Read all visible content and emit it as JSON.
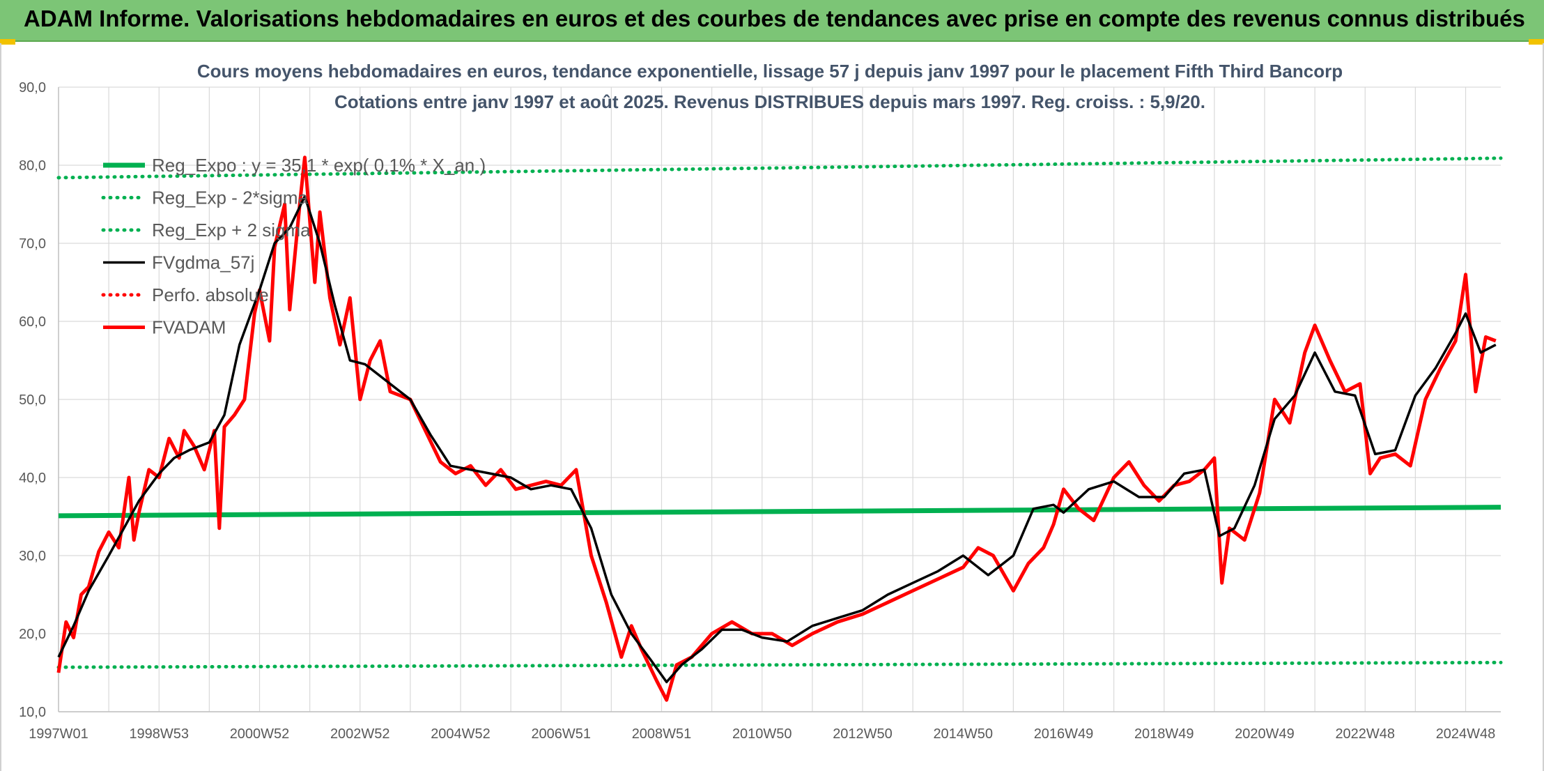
{
  "banner": {
    "title": "ADAM Informe. Valorisations hebdomadaires en euros et des courbes de tendances avec prise en compte des revenus connus distribués"
  },
  "colors": {
    "banner": "#7cc576",
    "reg_expo": "#00b050",
    "fv_gdma": "#000000",
    "fvadam": "#ff0000",
    "grid": "#d9d9d9",
    "axis_text": "#595959",
    "title_text": "#44546a"
  },
  "chart_data": {
    "type": "line",
    "title": "Cours moyens hebdomadaires en euros, tendance exponentielle, lissage 57 j depuis janv 1997 pour le placement Fifth Third Bancorp",
    "subtitle": "Cotations entre janv 1997 et août 2025. Revenus DISTRIBUES depuis mars 1997. Reg. croiss. : 5,9/20.",
    "xlabel": "",
    "ylabel": "",
    "ylim": [
      10,
      90
    ],
    "xlim": [
      1997.0,
      2025.7
    ],
    "yticks": [
      "10,0",
      "20,0",
      "30,0",
      "40,0",
      "50,0",
      "60,0",
      "70,0",
      "80,0",
      "90,0"
    ],
    "xticks": [
      {
        "label": "1997W01",
        "x": 1997.0
      },
      {
        "label": "1998W53",
        "x": 1999.0
      },
      {
        "label": "2000W52",
        "x": 2001.0
      },
      {
        "label": "2002W52",
        "x": 2003.0
      },
      {
        "label": "2004W52",
        "x": 2005.0
      },
      {
        "label": "2006W51",
        "x": 2007.0
      },
      {
        "label": "2008W51",
        "x": 2009.0
      },
      {
        "label": "2010W50",
        "x": 2011.0
      },
      {
        "label": "2012W50",
        "x": 2013.0
      },
      {
        "label": "2014W50",
        "x": 2015.0
      },
      {
        "label": "2016W49",
        "x": 2017.0
      },
      {
        "label": "2018W49",
        "x": 2019.0
      },
      {
        "label": "2020W49",
        "x": 2021.0
      },
      {
        "label": "2022W48",
        "x": 2023.0
      },
      {
        "label": "2024W48",
        "x": 2025.0
      }
    ],
    "grid": true,
    "legend_position": "top-left",
    "series": [
      {
        "name": "Reg_Expo : y = 35,1 * exp( 0,1% * X_an )",
        "style": "solid-thick",
        "color": "#00b050",
        "x": [
          1997.0,
          2025.7
        ],
        "y": [
          35.1,
          36.2
        ]
      },
      {
        "name": "Reg_Exp - 2*sigma",
        "style": "dotted",
        "color": "#00b050",
        "x": [
          1997.0,
          2025.7
        ],
        "y": [
          15.7,
          16.3
        ]
      },
      {
        "name": "Reg_Exp + 2 sigma",
        "style": "dotted",
        "color": "#00b050",
        "x": [
          1997.0,
          2025.7
        ],
        "y": [
          78.4,
          80.9
        ]
      },
      {
        "name": "FVgdma_57j",
        "style": "solid",
        "color": "#000000",
        "x": [
          1997.0,
          1997.3,
          1997.6,
          1998.0,
          1998.3,
          1998.6,
          1999.0,
          1999.3,
          1999.6,
          2000.0,
          2000.3,
          2000.6,
          2001.0,
          2001.3,
          2001.6,
          2001.9,
          2002.2,
          2002.5,
          2002.8,
          2003.1,
          2003.4,
          2003.7,
          2004.0,
          2004.4,
          2004.8,
          2005.2,
          2005.6,
          2006.0,
          2006.4,
          2006.8,
          2007.2,
          2007.6,
          2008.0,
          2008.4,
          2008.8,
          2009.1,
          2009.4,
          2009.8,
          2010.2,
          2010.6,
          2011.0,
          2011.5,
          2012.0,
          2012.5,
          2013.0,
          2013.5,
          2014.0,
          2014.5,
          2015.0,
          2015.5,
          2016.0,
          2016.4,
          2016.8,
          2017.0,
          2017.5,
          2018.0,
          2018.5,
          2019.0,
          2019.4,
          2019.8,
          2020.1,
          2020.4,
          2020.8,
          2021.2,
          2021.6,
          2022.0,
          2022.4,
          2022.8,
          2023.2,
          2023.6,
          2024.0,
          2024.4,
          2024.8,
          2025.0,
          2025.3,
          2025.6
        ],
        "y": [
          17.0,
          21.0,
          25.5,
          30.0,
          33.5,
          37.0,
          40.5,
          42.5,
          43.5,
          44.5,
          48.0,
          57.0,
          64.0,
          70.0,
          72.0,
          76.0,
          70.0,
          62.0,
          55.0,
          54.5,
          53.0,
          51.5,
          50.0,
          45.5,
          41.5,
          41.0,
          40.5,
          40.0,
          38.5,
          39.0,
          38.5,
          33.5,
          25.0,
          20.0,
          16.5,
          13.8,
          16.0,
          18.0,
          20.5,
          20.5,
          19.5,
          19.0,
          21.0,
          22.0,
          23.0,
          25.0,
          26.5,
          28.0,
          30.0,
          27.5,
          30.0,
          36.0,
          36.5,
          35.5,
          38.5,
          39.5,
          37.5,
          37.5,
          40.5,
          41.0,
          32.5,
          33.5,
          39.0,
          47.5,
          50.5,
          56.0,
          51.0,
          50.5,
          43.0,
          43.5,
          50.5,
          54.0,
          58.5,
          61.0,
          56.0,
          57.0
        ]
      },
      {
        "name": "Perfo. absolue",
        "style": "dotted",
        "color": "#ff0000",
        "x": [],
        "y": []
      },
      {
        "name": "FVADAM",
        "style": "solid-thick",
        "color": "#ff0000",
        "x": [
          1997.0,
          1997.15,
          1997.3,
          1997.45,
          1997.6,
          1997.8,
          1998.0,
          1998.2,
          1998.4,
          1998.5,
          1998.6,
          1998.8,
          1999.0,
          1999.2,
          1999.4,
          1999.5,
          1999.7,
          1999.9,
          2000.1,
          2000.2,
          2000.3,
          2000.5,
          2000.7,
          2000.9,
          2001.0,
          2001.2,
          2001.3,
          2001.5,
          2001.6,
          2001.8,
          2001.9,
          2002.1,
          2002.2,
          2002.4,
          2002.6,
          2002.8,
          2003.0,
          2003.2,
          2003.4,
          2003.6,
          2003.8,
          2004.0,
          2004.3,
          2004.6,
          2004.9,
          2005.2,
          2005.5,
          2005.8,
          2006.1,
          2006.4,
          2006.7,
          2007.0,
          2007.3,
          2007.6,
          2007.9,
          2008.2,
          2008.4,
          2008.6,
          2008.9,
          2009.1,
          2009.3,
          2009.6,
          2010.0,
          2010.4,
          2010.8,
          2011.2,
          2011.6,
          2012.0,
          2012.5,
          2013.0,
          2013.5,
          2014.0,
          2014.5,
          2015.0,
          2015.3,
          2015.6,
          2016.0,
          2016.3,
          2016.6,
          2016.8,
          2017.0,
          2017.3,
          2017.6,
          2018.0,
          2018.3,
          2018.6,
          2018.9,
          2019.2,
          2019.5,
          2019.8,
          2020.0,
          2020.15,
          2020.3,
          2020.6,
          2020.9,
          2021.2,
          2021.5,
          2021.8,
          2022.0,
          2022.3,
          2022.6,
          2022.9,
          2023.1,
          2023.3,
          2023.6,
          2023.9,
          2024.2,
          2024.5,
          2024.8,
          2025.0,
          2025.2,
          2025.4,
          2025.6
        ],
        "y": [
          15.0,
          21.5,
          19.5,
          25.0,
          26.0,
          30.5,
          33.0,
          31.0,
          40.0,
          32.0,
          35.5,
          41.0,
          40.0,
          45.0,
          42.5,
          46.0,
          44.0,
          41.0,
          46.0,
          33.5,
          46.5,
          48.0,
          50.0,
          61.0,
          64.0,
          57.5,
          69.5,
          75.0,
          61.5,
          75.0,
          81.0,
          65.0,
          74.0,
          63.0,
          57.0,
          63.0,
          50.0,
          55.0,
          57.5,
          51.0,
          50.5,
          50.0,
          46.0,
          42.0,
          40.5,
          41.5,
          39.0,
          41.0,
          38.5,
          39.0,
          39.5,
          39.0,
          41.0,
          30.0,
          24.0,
          17.0,
          21.0,
          18.0,
          14.0,
          11.5,
          16.0,
          17.0,
          20.0,
          21.5,
          20.0,
          20.0,
          18.5,
          20.0,
          21.5,
          22.5,
          24.0,
          25.5,
          27.0,
          28.5,
          31.0,
          30.0,
          25.5,
          29.0,
          31.0,
          34.0,
          38.5,
          36.0,
          34.5,
          40.0,
          42.0,
          39.0,
          37.0,
          39.0,
          39.5,
          41.0,
          42.5,
          26.5,
          33.5,
          32.0,
          38.0,
          50.0,
          47.0,
          56.0,
          59.5,
          55.0,
          51.0,
          52.0,
          40.5,
          42.5,
          43.0,
          41.5,
          50.0,
          54.0,
          57.5,
          66.0,
          51.0,
          58.0,
          57.5
        ]
      }
    ]
  }
}
